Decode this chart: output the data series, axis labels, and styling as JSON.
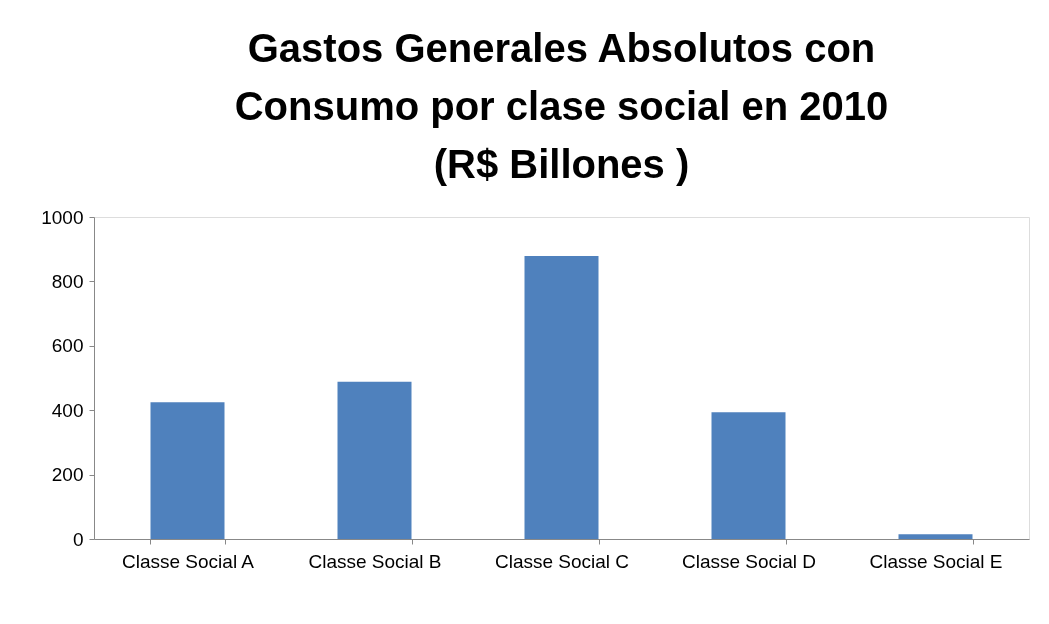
{
  "chart_data": {
    "type": "bar",
    "title": "Gastos Generales Absolutos con\nConsumo por clase social en 2010\n(R$ Billones )",
    "categories": [
      "Classe Social A",
      "Classe Social B",
      "Classe Social C",
      "Classe Social D",
      "Classe Social E"
    ],
    "values": [
      425,
      488,
      879,
      394,
      15
    ],
    "color": "#4f81bd",
    "ylim": [
      0,
      1000
    ],
    "yticks": [
      0,
      200,
      400,
      600,
      800,
      1000
    ],
    "grid": false
  }
}
